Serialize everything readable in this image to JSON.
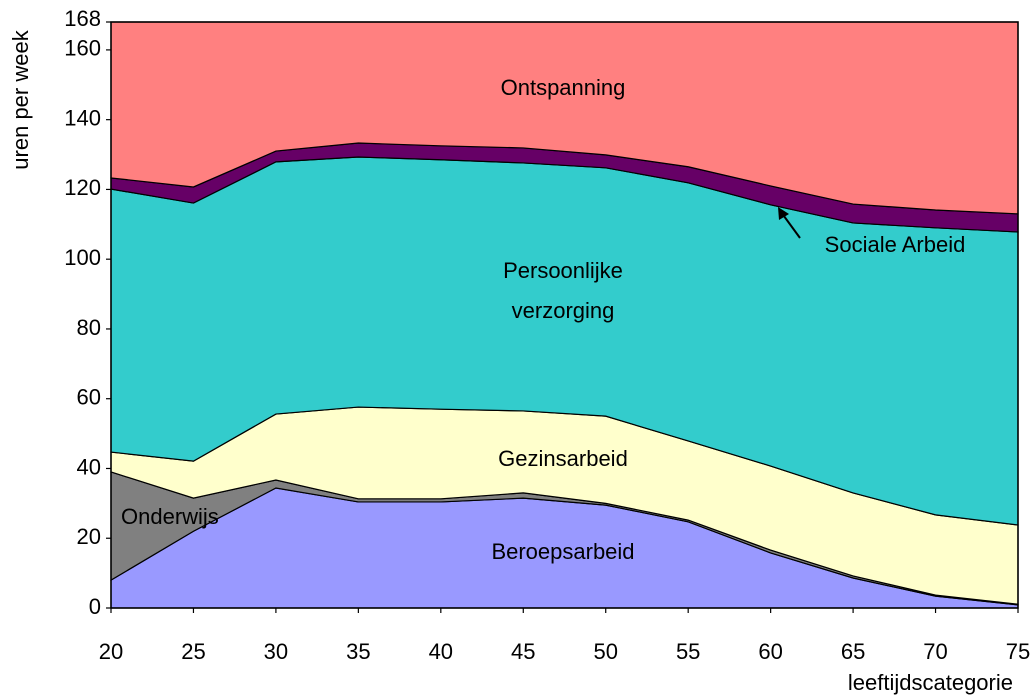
{
  "chart_data": {
    "type": "stacked_area",
    "x": [
      20,
      25,
      30,
      35,
      40,
      45,
      50,
      55,
      60,
      65,
      70,
      75
    ],
    "xlim": [
      20,
      75
    ],
    "xticks": [
      20,
      25,
      30,
      35,
      40,
      45,
      50,
      55,
      60,
      65,
      70,
      75
    ],
    "ylim": [
      0,
      168
    ],
    "yticks": [
      0,
      20,
      40,
      60,
      80,
      100,
      120,
      140,
      160,
      168
    ],
    "x_label": "leeftijdscategorie",
    "y_label": "uren per week",
    "series": [
      {
        "name": "Beroepsarbeid",
        "color": "#9999ff",
        "values": [
          8,
          22,
          34.4,
          30.4,
          30.4,
          31.5,
          29.5,
          24.7,
          15.8,
          8.6,
          3.4,
          0.9
        ]
      },
      {
        "name": "Onderwijs",
        "color": "#808080",
        "values": [
          31,
          9.5,
          2.3,
          0.9,
          0.9,
          1.5,
          0.5,
          0.5,
          0.8,
          0.6,
          0.3,
          0.2
        ]
      },
      {
        "name": "Gezinsarbeid",
        "color": "#ffffcc",
        "values": [
          5.7,
          10.6,
          18.9,
          26.3,
          25.7,
          23.5,
          25,
          22.7,
          24.1,
          23.8,
          23,
          22.7
        ]
      },
      {
        "name": "Persoonlijke verzorging",
        "color": "#33cccc",
        "values": [
          75.4,
          74,
          72.3,
          71.7,
          71.5,
          71.1,
          71.2,
          74,
          74.9,
          77.4,
          82.3,
          84
        ]
      },
      {
        "name": "Sociale Arbeid",
        "color": "#660066",
        "values": [
          3.2,
          4.6,
          3.1,
          4,
          4,
          4.3,
          3.7,
          4.6,
          5.4,
          5.4,
          5.1,
          5.2
        ]
      },
      {
        "name": "Ontspanning",
        "color": "#ff8080",
        "values": [
          44.7,
          47.3,
          37,
          34.7,
          35.5,
          36.1,
          38.1,
          41.5,
          47,
          52.2,
          53.9,
          55
        ]
      }
    ]
  }
}
